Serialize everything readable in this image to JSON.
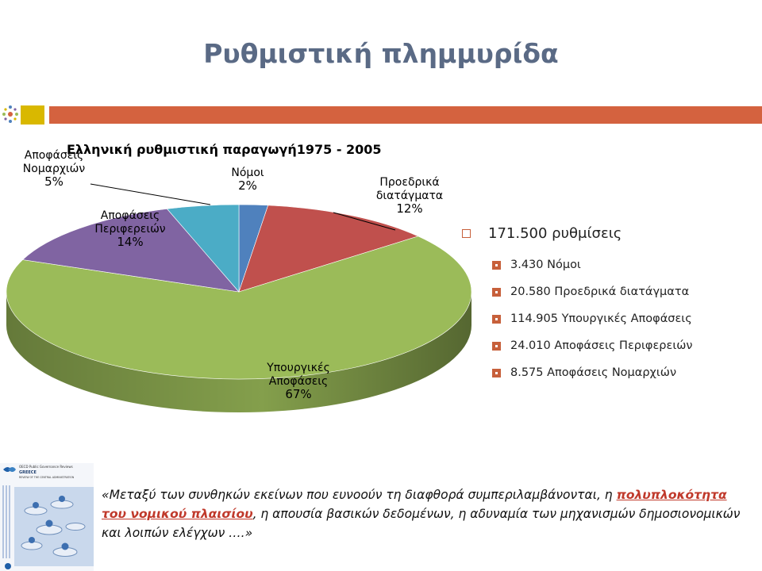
{
  "slide": {
    "title": "Ρυθμιστική πλημμυρίδα"
  },
  "chart_data": {
    "type": "pie",
    "title": "Ελληνική ρυθμιστική παραγωγή1975  - 2005",
    "slices": [
      {
        "name": "Νόμοι",
        "value": 2,
        "label": "2%",
        "color": "#4f81bd"
      },
      {
        "name": "Προεδρικά διατάγματα",
        "value": 12,
        "label": "12%",
        "color": "#c0504d"
      },
      {
        "name": "Υπουργικές Αποφάσεις",
        "value": 67,
        "label": "67%",
        "color": "#9bbb59"
      },
      {
        "name": "Αποφάσεις Περιφερειών",
        "value": 14,
        "label": "14%",
        "color": "#8064a2"
      },
      {
        "name": "Αποφάσεις Νομαρχιών",
        "value": 5,
        "label": "5%",
        "color": "#4bacc6"
      }
    ],
    "slice_label_lines": [
      [
        "Νόμοι"
      ],
      [
        "Προεδρικά",
        "διατάγματα"
      ],
      [
        "Υπουργικές",
        "Αποφάσεις"
      ],
      [
        "Αποφάσεις",
        "Περιφερειών"
      ],
      [
        "Αποφάσεις",
        "Νομαρχιών"
      ]
    ],
    "legend": "none"
  },
  "summary": {
    "total": "171.500 ρυθμίσεις",
    "items": [
      "3.430 Νόμοι",
      "20.580 Προεδρικά διατάγματα",
      "114.905 Υπουργικές Αποφάσεις",
      "24.010 Αποφάσεις Περιφερειών",
      "8.575 Αποφάσεις Νομαρχιών"
    ],
    "bullet_color": "#c7603b"
  },
  "quote": {
    "before": "«Μεταξύ των συνθηκών εκείνων που ευνοούν τη διαφθορά συμπεριλαμβάνονται, η ",
    "highlight": "πολυπλοκότητα του νομικού πλαισίου",
    "after": ", η απουσία βασικών δεδομένων, η αδυναμία των μηχανισμών δημοσιονομικών και λοιπών ελέγχων ….»"
  },
  "oecd_cover": {
    "line1": "OECD Public Governance Reviews",
    "line2": "GREECE",
    "line3": "REVIEW OF THE CENTRAL ADMINISTRATION"
  },
  "colors": {
    "title": "#5a6a85",
    "accent_red": "#d4623f",
    "accent_yellow": "#d9b800"
  }
}
